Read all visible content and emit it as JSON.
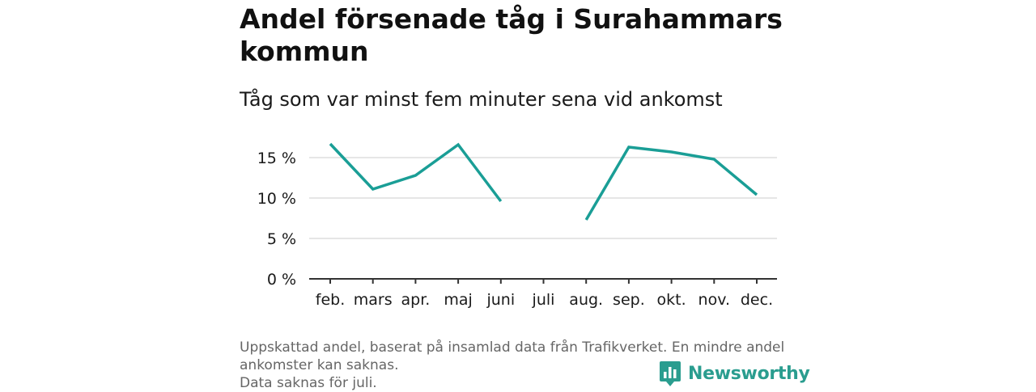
{
  "title": "Andel försenade tåg i Surahammars kommun",
  "subtitle": "Tåg som var minst fem minuter sena vid ankomst",
  "footer": {
    "note_line1": "Uppskattad andel, baserat på insamlad data från Trafikverket. En mindre andel",
    "note_line2": "ankomster kan saknas.",
    "note_line3": "Data saknas för juli."
  },
  "brand": {
    "name": "Newsworthy",
    "color": "#2a9d8f"
  },
  "chart_data": {
    "type": "line",
    "categories": [
      "feb.",
      "mars",
      "apr.",
      "maj",
      "juni",
      "juli",
      "aug.",
      "sep.",
      "okt.",
      "nov.",
      "dec."
    ],
    "series": [
      {
        "values": [
          16.7,
          11.1,
          12.8,
          16.6,
          9.6,
          null,
          7.3,
          16.3,
          15.7,
          14.8,
          10.4
        ]
      }
    ],
    "y_ticks": [
      0,
      5,
      10,
      15
    ],
    "y_tick_labels": [
      "0 %",
      "5 %",
      "10 %",
      "15 %"
    ],
    "ylim": [
      0,
      17
    ],
    "line_color": "#1a9e96",
    "grid": true,
    "xlabel": "",
    "ylabel": ""
  }
}
